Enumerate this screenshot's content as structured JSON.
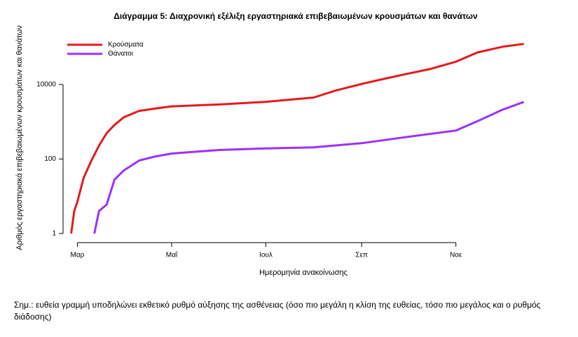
{
  "chart_data": {
    "type": "line",
    "title": "Διάγραμμα 5: Διαχρονική εξέλιξη εργαστηριακά επιβεβαιωμένων κρουσμάτων και θανάτων",
    "x_label": "Ημερομηνία ανακοίνωσης",
    "y_label": "Αριθμός εργαστηριακά επιβεβαιωμένων κρουσμάτων και θανάτων",
    "note": "Σημ.: ευθεία γραμμή υποδηλώνει εκθετικό ρυθμό αύξησης της ασθένειας (όσο πιο μεγάλη η κλίση της ευθείας, τόσο πιο μεγάλος και ο ρυθμός διάδοσης)",
    "xlim": [
      -7,
      300
    ],
    "xticks": [
      {
        "value": 0,
        "label": "Μαρ"
      },
      {
        "value": 61,
        "label": "Μαΐ"
      },
      {
        "value": 122,
        "label": "Ιουλ"
      },
      {
        "value": 184,
        "label": "Σεπ"
      },
      {
        "value": 245,
        "label": "Νοε"
      }
    ],
    "ylim": [
      0.62,
      214000
    ],
    "yticks": [
      1,
      100,
      10000
    ],
    "ylog": true,
    "legend": "top-left",
    "series": [
      {
        "name": "Κρούσματα",
        "color": "#e41a1c",
        "x": [
          -4,
          -2,
          0,
          4,
          9,
          14,
          19,
          24,
          30,
          40,
          50,
          61,
          92,
          122,
          153,
          167,
          184,
          198,
          214,
          228,
          245,
          259,
          275,
          289
        ],
        "values": [
          1,
          4,
          7,
          31,
          89,
          228,
          495,
          821,
          1314,
          1955,
          2245,
          2591,
          2917,
          3432,
          4477,
          6858,
          10317,
          14041,
          19613,
          25802,
          40929,
          72510,
          103034,
          123000
        ]
      },
      {
        "name": "Θάνατοι",
        "color": "#9b30ff",
        "x": [
          11,
          14,
          19,
          24,
          30,
          40,
          50,
          61,
          92,
          122,
          153,
          184,
          214,
          245,
          259,
          275,
          289
        ],
        "values": [
          1,
          4,
          6,
          28,
          49,
          91,
          116,
          140,
          175,
          192,
          206,
          266,
          393,
          581,
          1035,
          2102,
          3400
        ]
      }
    ]
  }
}
